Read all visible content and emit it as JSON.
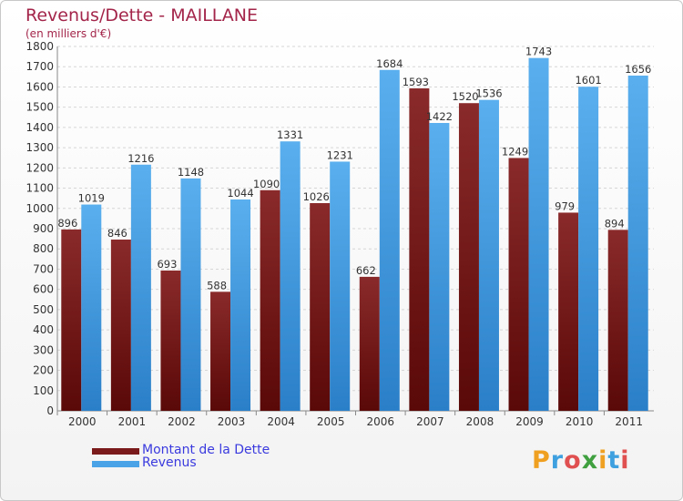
{
  "title": "Revenus/Dette - MAILLANE",
  "subtitle": "(en milliers d'€)",
  "legend": {
    "debt_label": "Montant de la Dette",
    "revenue_label": "Revenus"
  },
  "logo": {
    "text": "Proxiti",
    "letters": [
      "P",
      "r",
      "o",
      "x",
      "i",
      "t",
      "i"
    ],
    "colors": [
      "#f0a020",
      "#3fa0e0",
      "#e05050",
      "#40a040",
      "#f0a020",
      "#3fa0e0",
      "#e05050"
    ]
  },
  "colors": {
    "debt": "#7a1a1a",
    "revenue": "#4aa3e6",
    "title": "#a3254a",
    "legend_text": "#3a3adf"
  },
  "chart_data": {
    "type": "bar",
    "categories": [
      "2000",
      "2001",
      "2002",
      "2003",
      "2004",
      "2005",
      "2006",
      "2007",
      "2008",
      "2009",
      "2010",
      "2011"
    ],
    "series": [
      {
        "name": "Montant de la Dette",
        "values": [
          896,
          846,
          693,
          588,
          1090,
          1026,
          662,
          1593,
          1520,
          1249,
          979,
          894
        ]
      },
      {
        "name": "Revenus",
        "values": [
          1019,
          1216,
          1148,
          1044,
          1331,
          1231,
          1684,
          1422,
          1536,
          1743,
          1601,
          1656
        ]
      }
    ],
    "ylim": [
      0,
      1800
    ],
    "ytick_step": 100,
    "grid": true,
    "legend_position": "bottom-left"
  }
}
